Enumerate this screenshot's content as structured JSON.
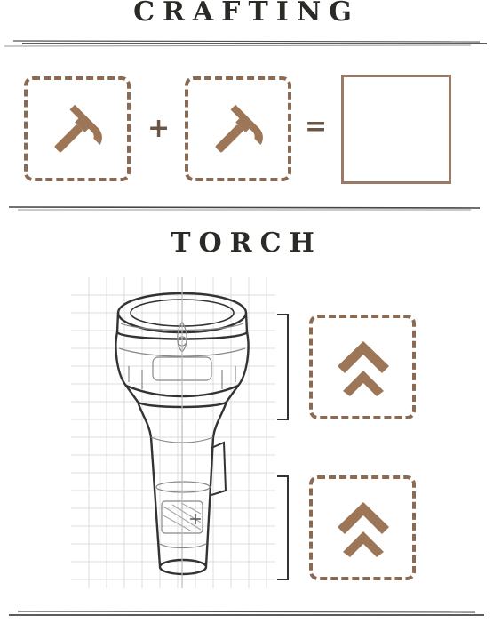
{
  "crafting": {
    "title": "CRAFTING",
    "ingredients": [
      {
        "icon": "hammer-icon"
      },
      {
        "icon": "hammer-icon"
      }
    ],
    "plus_symbol": "+",
    "equals_symbol": "=",
    "result": {
      "empty": true
    }
  },
  "item": {
    "name": "TORCH",
    "illustration": "torch-sketch",
    "upgrades": [
      {
        "icon": "double-chevron-up-icon",
        "section": "head"
      },
      {
        "icon": "double-chevron-up-icon",
        "section": "body"
      }
    ]
  },
  "colors": {
    "slot_border": "#8a6a52",
    "icon": "#9c7656",
    "text": "#2c2a26"
  }
}
